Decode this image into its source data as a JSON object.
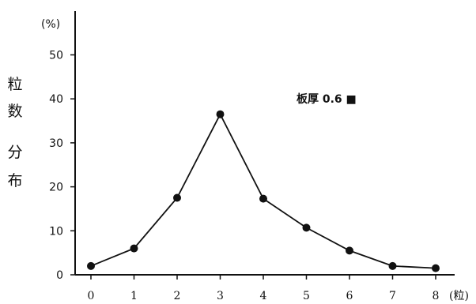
{
  "chart_data": {
    "type": "line",
    "x": [
      0,
      1,
      2,
      3,
      4,
      5,
      6,
      7,
      8
    ],
    "values": [
      2,
      6,
      17.5,
      36.5,
      17.3,
      10.7,
      5.5,
      2.0,
      1.5
    ],
    "ylabel": "粒数分布",
    "yunit": "(%)",
    "xunit": "(粒)",
    "xlim": [
      0,
      8
    ],
    "ylim": [
      0,
      50
    ],
    "yticks": [
      0,
      10,
      20,
      30,
      40,
      50
    ],
    "xticks": [
      "0",
      "1",
      "2",
      "3",
      "4",
      "5",
      "6",
      "7",
      "8"
    ],
    "annotation": "板厚 0.6 ■",
    "grid": false,
    "line_color": "#111111",
    "marker_color": "#111111"
  }
}
